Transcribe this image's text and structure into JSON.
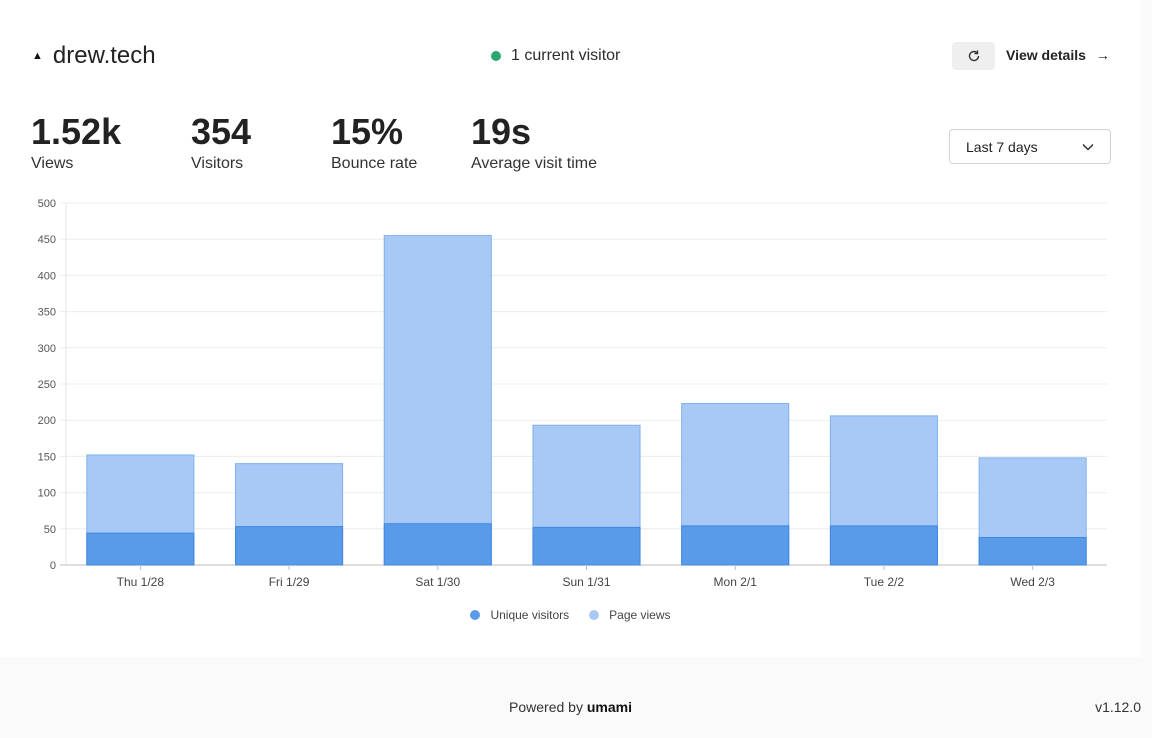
{
  "header": {
    "site_name": "drew.tech",
    "current_visitors": "1 current visitor",
    "view_details": "View details"
  },
  "metrics": [
    {
      "value": "1.52k",
      "label": "Views"
    },
    {
      "value": "354",
      "label": "Visitors"
    },
    {
      "value": "15%",
      "label": "Bounce rate"
    },
    {
      "value": "19s",
      "label": "Average visit time"
    }
  ],
  "date_range": {
    "selected": "Last 7 days"
  },
  "colors": {
    "page_views": "#a8c9f6",
    "unique_visitors": "#5a9be9",
    "status_dot": "#2ca772"
  },
  "icons": {
    "site": "triangle-icon",
    "refresh": "refresh-icon",
    "arrow": "arrow-right-icon",
    "dropdown": "chevron-down-icon"
  },
  "chart_data": {
    "type": "bar",
    "stacked": "overlaid",
    "categories": [
      "Thu 1/28",
      "Fri 1/29",
      "Sat 1/30",
      "Sun 1/31",
      "Mon 2/1",
      "Tue 2/2",
      "Wed 2/3"
    ],
    "series": [
      {
        "name": "Unique visitors",
        "values": [
          44,
          53,
          57,
          52,
          54,
          54,
          38
        ]
      },
      {
        "name": "Page views",
        "values": [
          152,
          140,
          455,
          193,
          223,
          206,
          148
        ]
      }
    ],
    "ylim": [
      0,
      500
    ],
    "yticks": [
      0,
      50,
      100,
      150,
      200,
      250,
      300,
      350,
      400,
      450,
      500
    ],
    "grid": true,
    "legend": "bottom"
  },
  "footer": {
    "powered_by": "Powered by",
    "brand": "umami",
    "version": "v1.12.0"
  }
}
